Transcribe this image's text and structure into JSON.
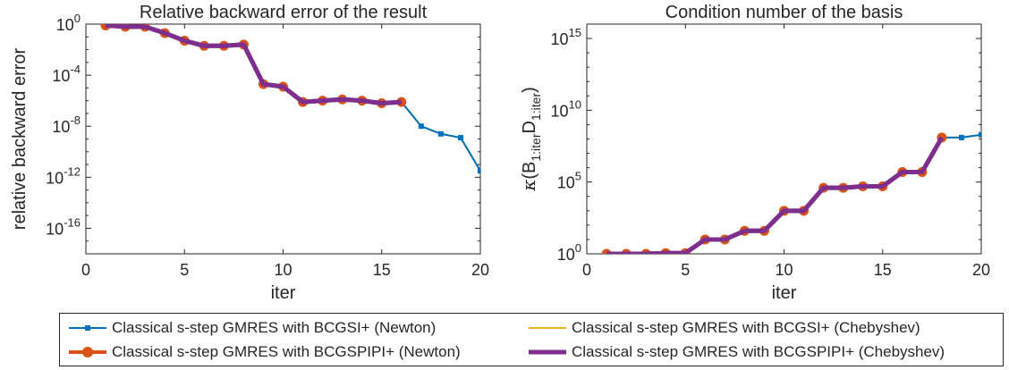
{
  "colors": {
    "bcgsi_newton": "#0072BD",
    "bcgsi_cheb": "#EDB120",
    "bcgspipi_newton": "#D95319",
    "bcgspipi_cheb": "#7E2F8E"
  },
  "chart_data": [
    {
      "type": "line",
      "title": "Relative backward error of the result",
      "xlabel": "iter",
      "ylabel": "relative backward error",
      "yscale": "log",
      "xlim": [
        0,
        20
      ],
      "ylim_log10": [
        -18,
        0
      ],
      "xticks": [
        "0",
        "5",
        "10",
        "15",
        "20"
      ],
      "yticks": [
        {
          "base": "10",
          "exp": "0"
        },
        {
          "base": "10",
          "exp": "-4"
        },
        {
          "base": "10",
          "exp": "-8"
        },
        {
          "base": "10",
          "exp": "-12"
        },
        {
          "base": "10",
          "exp": "-16"
        }
      ],
      "x": [
        1,
        2,
        3,
        4,
        5,
        6,
        7,
        8,
        9,
        10,
        11,
        12,
        13,
        14,
        15,
        16,
        17,
        18,
        19,
        20
      ],
      "series": [
        {
          "name": "Classical s-step GMRES with BCGSI+ (Newton)",
          "log10_values": [
            -0.1,
            -0.2,
            -0.2,
            -0.7,
            -1.3,
            -1.7,
            -1.7,
            -1.6,
            -4.7,
            -4.9,
            -6.1,
            -6.0,
            -5.9,
            -6.0,
            -6.2,
            -6.1,
            -8.0,
            -8.6,
            -8.9,
            -11.5
          ]
        },
        {
          "name": "Classical s-step GMRES with BCGSI+ (Chebyshev)",
          "log10_values": [
            -0.1,
            -0.2,
            -0.2,
            -0.7,
            -1.3,
            -1.7,
            -1.7,
            -1.6,
            -4.7,
            -4.9,
            -6.1,
            -6.0,
            -5.9,
            -6.0,
            -6.2,
            -6.1,
            -8.0,
            -8.6,
            -8.9,
            -11.5
          ]
        },
        {
          "name": "Classical s-step GMRES with BCGSPIPI+ (Newton)",
          "log10_values": [
            -0.1,
            -0.2,
            -0.2,
            -0.7,
            -1.3,
            -1.7,
            -1.7,
            -1.6,
            -4.7,
            -4.9,
            -6.1,
            -6.0,
            -5.9,
            -6.0,
            -6.2,
            -6.1
          ]
        },
        {
          "name": "Classical s-step GMRES with BCGSPIPI+ (Chebyshev)",
          "log10_values": [
            -0.1,
            -0.2,
            -0.2,
            -0.7,
            -1.3,
            -1.7,
            -1.7,
            -1.6,
            -4.7,
            -4.9,
            -6.1,
            -6.0,
            -5.9,
            -6.0,
            -6.2,
            -6.1
          ]
        }
      ]
    },
    {
      "type": "line",
      "title": "Condition number of the basis",
      "xlabel": "iter",
      "ylabel": "κ(B1:iterD1:iter)",
      "ylabel_parts": {
        "kappa": "κ",
        "open": "(B",
        "sub1": "1:iter",
        "mid": "D",
        "sub2": "1:iter",
        "close": ")"
      },
      "yscale": "log",
      "xlim": [
        0,
        20
      ],
      "ylim_log10": [
        0,
        16
      ],
      "xticks": [
        "0",
        "5",
        "10",
        "15",
        "20"
      ],
      "yticks": [
        {
          "base": "10",
          "exp": "0"
        },
        {
          "base": "10",
          "exp": "5"
        },
        {
          "base": "10",
          "exp": "10"
        },
        {
          "base": "10",
          "exp": "15"
        }
      ],
      "x": [
        1,
        2,
        3,
        4,
        5,
        6,
        7,
        8,
        9,
        10,
        11,
        12,
        13,
        14,
        15,
        16,
        17,
        18,
        19,
        20
      ],
      "series": [
        {
          "name": "Classical s-step GMRES with BCGSI+ (Newton)",
          "log10_values": [
            0,
            0,
            0,
            0.05,
            0.05,
            1.0,
            1.0,
            1.6,
            1.6,
            3.0,
            3.0,
            4.6,
            4.6,
            4.7,
            4.7,
            5.7,
            5.7,
            8.1,
            8.1,
            8.3
          ]
        },
        {
          "name": "Classical s-step GMRES with BCGSI+ (Chebyshev)",
          "log10_values": [
            0,
            0,
            0,
            0.05,
            0.05,
            1.0,
            1.0,
            1.6,
            1.6,
            3.0,
            3.0,
            4.6,
            4.6,
            4.7,
            4.7,
            5.7,
            5.7,
            8.1,
            8.1,
            8.3
          ]
        },
        {
          "name": "Classical s-step GMRES with BCGSPIPI+ (Newton)",
          "log10_values": [
            0,
            0,
            0,
            0.05,
            0.05,
            1.0,
            1.0,
            1.6,
            1.6,
            3.0,
            3.0,
            4.6,
            4.6,
            4.7,
            4.7,
            5.7,
            5.7,
            8.1
          ]
        },
        {
          "name": "Classical s-step GMRES with BCGSPIPI+ (Chebyshev)",
          "log10_values": [
            0,
            0,
            0,
            0.05,
            0.05,
            1.0,
            1.0,
            1.6,
            1.6,
            3.0,
            3.0,
            4.6,
            4.6,
            4.7,
            4.7,
            5.7,
            5.7,
            8.1
          ]
        }
      ]
    }
  ],
  "legend": {
    "entries": [
      {
        "label": "Classical s-step GMRES with BCGSI+ (Newton)",
        "style": "newton_blue"
      },
      {
        "label": "Classical s-step GMRES with BCGSI+ (Chebyshev)",
        "style": "cheb_yellow"
      },
      {
        "label": "Classical s-step GMRES with BCGSPIPI+ (Newton)",
        "style": "newton_orange"
      },
      {
        "label": "Classical s-step GMRES with BCGSPIPI+ (Chebyshev)",
        "style": "cheb_purple"
      }
    ]
  }
}
